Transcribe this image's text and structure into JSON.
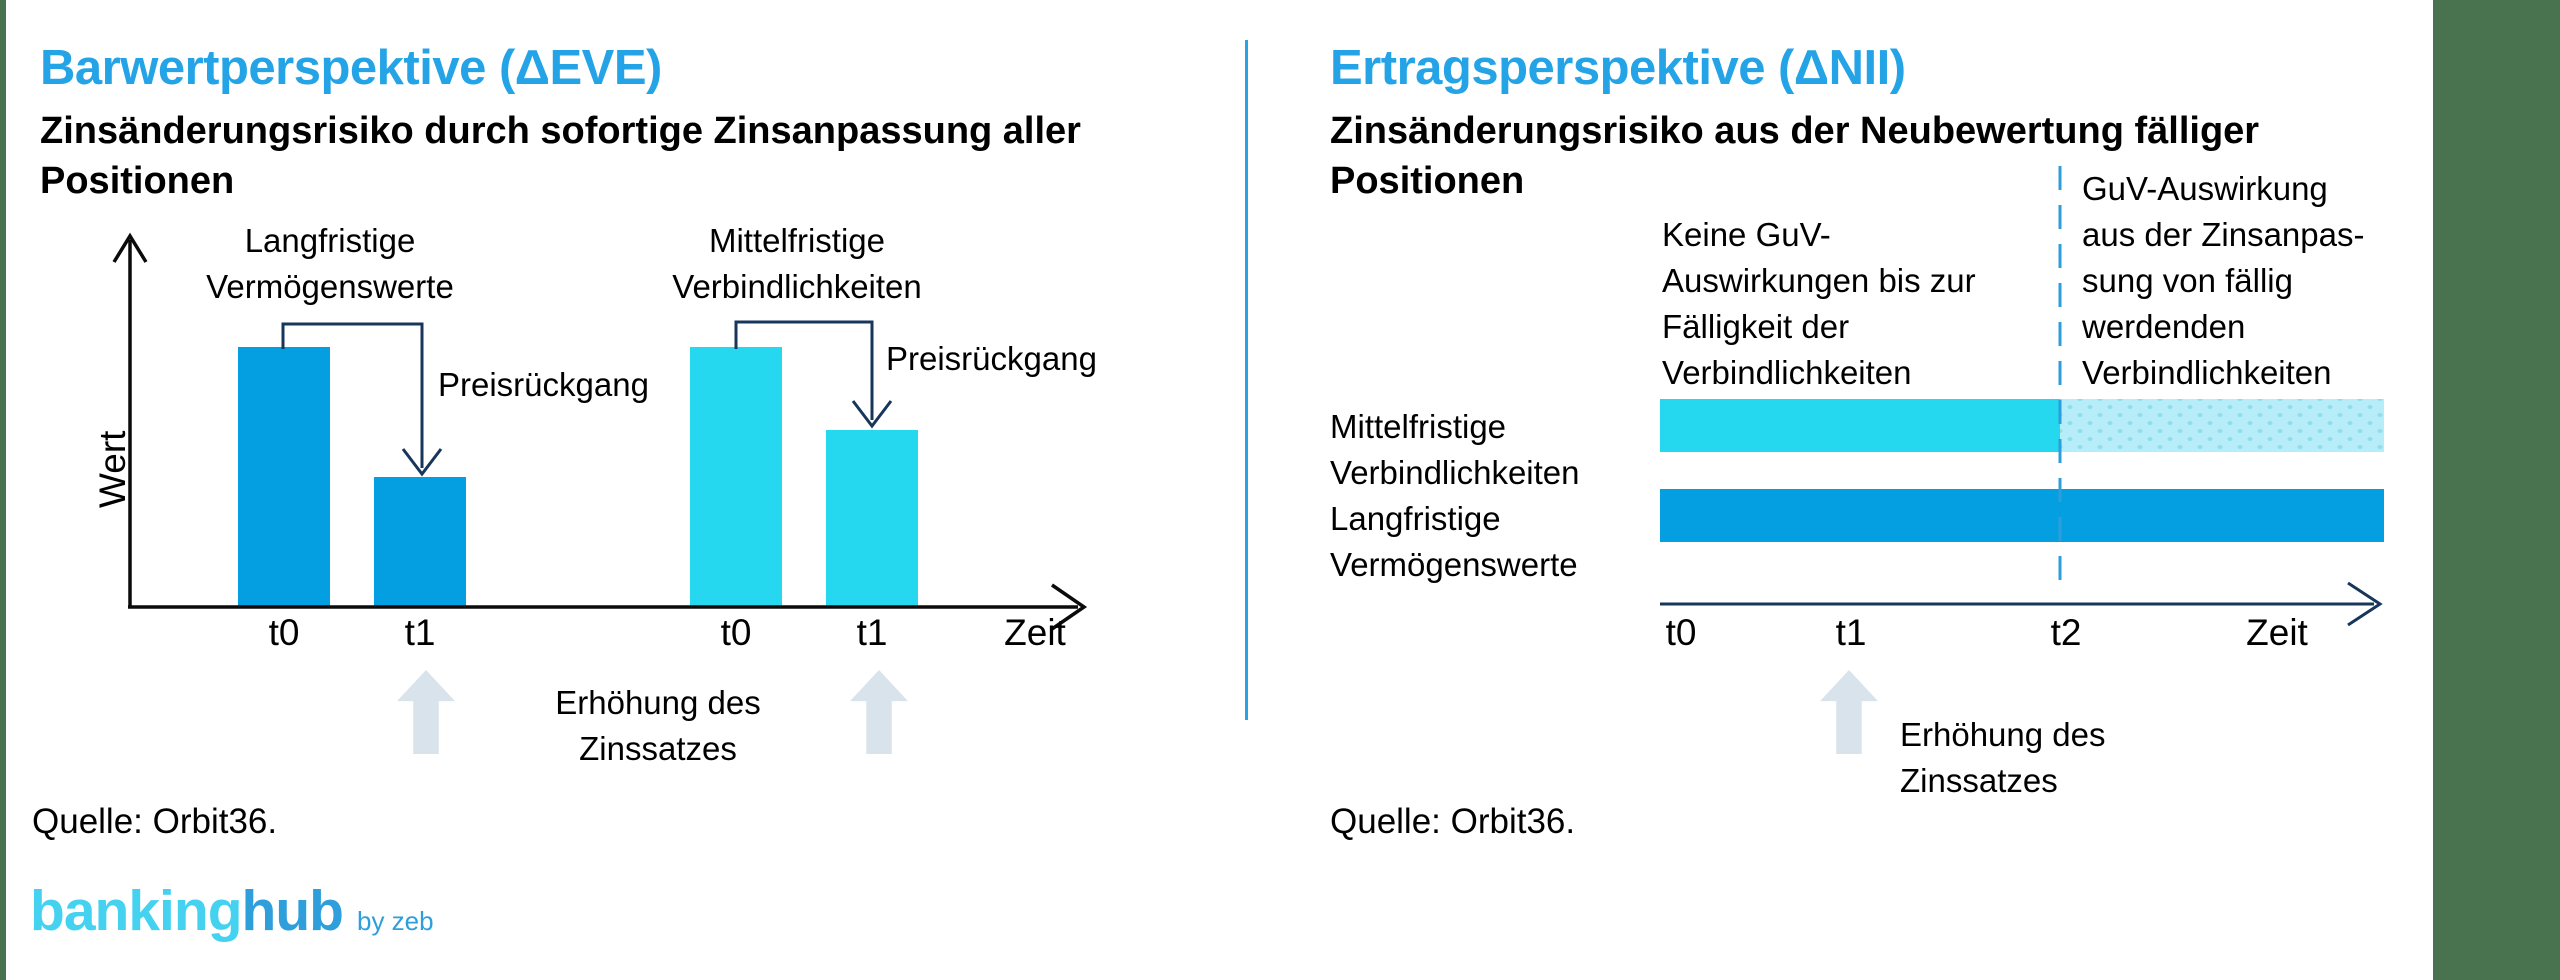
{
  "page": {
    "background": "#ffffff",
    "side_band_color": "#49724f",
    "divider_color": "#2aa3e3",
    "accent_blue": "#24a4e6",
    "navy_line": "#17365c",
    "black_axis": "#0b0b0b",
    "gray_arrow": "#d9e3ec"
  },
  "left_panel": {
    "title": "Barwertperspektive (ΔEVE)",
    "subtitle_lines": [
      "Zinsänderungsrisiko durch sofortige Zinsanpassung aller",
      "Positionen"
    ],
    "y_axis_label": "Wert",
    "group1_label_lines": [
      "Langfristige",
      "Vermögenswerte"
    ],
    "group2_label_lines": [
      "Mittelfristige",
      "Verbindlichkeiten"
    ],
    "decline_label_1": "Preisrückgang",
    "decline_label_2": "Preisrückgang",
    "tick_1": "t0",
    "tick_2": "t1",
    "tick_3": "t0",
    "tick_4": "t1",
    "x_axis_label": "Zeit",
    "shock_label_lines": [
      "Erhöhung des",
      "Zinssatzes"
    ],
    "source": "Quelle: Orbit36."
  },
  "right_panel": {
    "title": "Ertragsperspektive (ΔNII)",
    "subtitle_lines": [
      "Zinsänderungsrisiko aus der Neubewertung fälliger",
      "Positionen"
    ],
    "annotation_left_lines": [
      "Keine GuV-",
      "Auswirkungen bis zur",
      "Fälligkeit der",
      "Verbindlichkeiten"
    ],
    "annotation_right_lines": [
      "GuV-Auswirkung",
      "aus der Zinsanpas-",
      "sung von fällig",
      "werdenden",
      "Verbindlichkeiten"
    ],
    "row1_label_lines": [
      "Mittelfristige",
      "Verbindlichkeiten"
    ],
    "row2_label_lines": [
      "Langfristige",
      "Vermögenswerte"
    ],
    "tick_1": "t0",
    "tick_2": "t1",
    "tick_3": "t2",
    "x_axis_label": "Zeit",
    "shock_label_lines": [
      "Erhöhung des",
      "Zinssatzes"
    ],
    "source": "Quelle: Orbit36."
  },
  "footer": {
    "logo_part1": "banking",
    "logo_part2": "hub",
    "logo_suffix": "by zeb",
    "logo_color1": "#45d2f1",
    "logo_color2": "#2f9fdb"
  },
  "chart_data": [
    {
      "type": "bar",
      "title": "Barwertperspektive (ΔEVE)",
      "subtitle": "Zinsänderungsrisiko durch sofortige Zinsanpassung aller Positionen",
      "ylabel": "Wert",
      "xlabel": "Zeit",
      "grid": false,
      "groups": [
        {
          "name": "Langfristige Vermögenswerte",
          "color": "#049fe0",
          "categories": [
            "t0",
            "t1"
          ],
          "values": [
            100,
            50
          ],
          "annotation": "Preisrückgang"
        },
        {
          "name": "Mittelfristige Verbindlichkeiten",
          "color": "#26d7f0",
          "categories": [
            "t0",
            "t1"
          ],
          "values": [
            100,
            68
          ],
          "annotation": "Preisrückgang"
        }
      ],
      "event": {
        "label": "Erhöhung des Zinssatzes",
        "at": "t1"
      }
    },
    {
      "type": "bar",
      "orientation": "horizontal-timeline",
      "title": "Ertragsperspektive (ΔNII)",
      "subtitle": "Zinsänderungsrisiko aus der Neubewertung fälliger Positionen",
      "xlabel": "Zeit",
      "x_ticks": [
        "t0",
        "t1",
        "t2"
      ],
      "divider_at": "t2",
      "rows": [
        {
          "name": "Mittelfristige Verbindlichkeiten",
          "segments": [
            {
              "start": "t0",
              "end": "t2",
              "color": "#26d7f0",
              "variant": "solid"
            },
            {
              "start": "t2",
              "end": "end",
              "color": "#b6edf8",
              "variant": "dotted"
            }
          ]
        },
        {
          "name": "Langfristige Vermögenswerte",
          "segments": [
            {
              "start": "t0",
              "end": "end",
              "color": "#049fe0",
              "variant": "solid"
            }
          ]
        }
      ],
      "event": {
        "label": "Erhöhung des Zinssatzes",
        "at": "t1"
      }
    }
  ]
}
